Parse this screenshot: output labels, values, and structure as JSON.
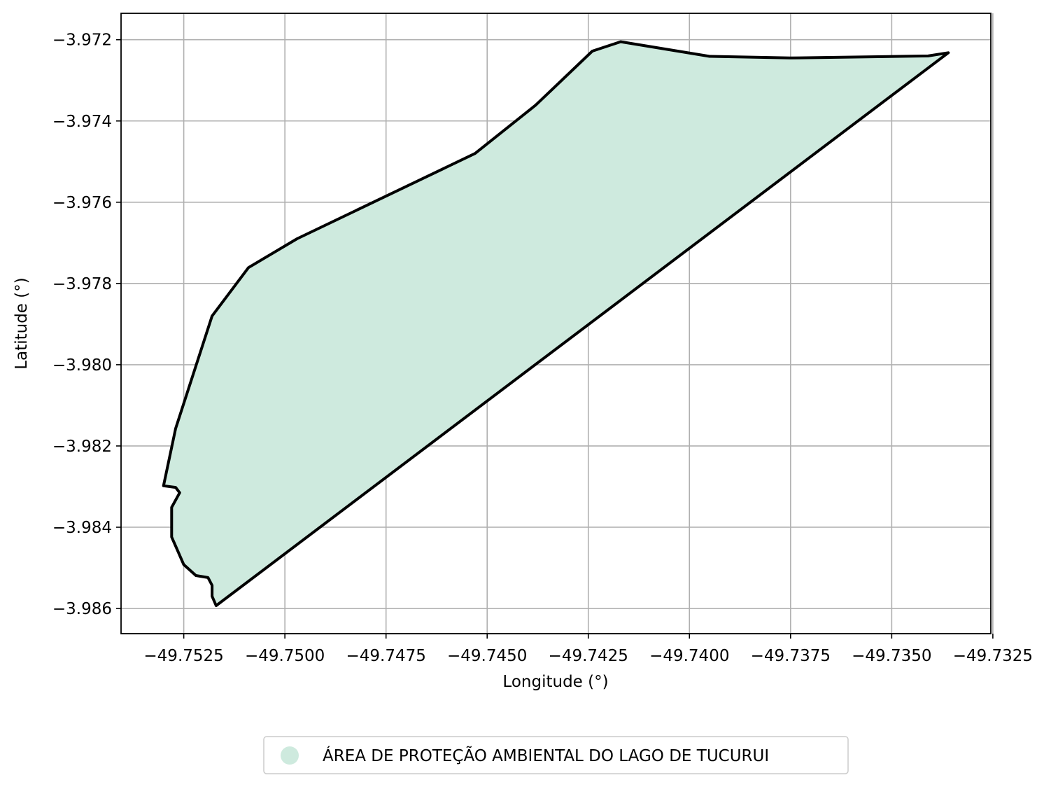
{
  "chart_data": {
    "type": "map-polygon",
    "xlabel": "Longitude (°)",
    "ylabel": "Latitude (°)",
    "xlim": [
      -49.75405,
      -49.73255
    ],
    "ylim": [
      -3.98662,
      -3.97135
    ],
    "xticks": [
      -49.7525,
      -49.75,
      -49.7475,
      -49.745,
      -49.7425,
      -49.74,
      -49.7375,
      -49.735,
      -49.7325
    ],
    "xtick_labels": [
      "−49.7525",
      "−49.7500",
      "−49.7475",
      "−49.7450",
      "−49.7425",
      "−49.7400",
      "−49.7375",
      "−49.7350",
      "−49.7325"
    ],
    "yticks": [
      -3.972,
      -3.974,
      -3.976,
      -3.978,
      -3.98,
      -3.982,
      -3.984,
      -3.986
    ],
    "ytick_labels": [
      "−3.972",
      "−3.974",
      "−3.976",
      "−3.978",
      "−3.980",
      "−3.982",
      "−3.984",
      "−3.986"
    ],
    "grid": true,
    "legend_position": "bottom-center, below plot",
    "series": [
      {
        "name": "ÁREA DE PROTEÇÃO AMBIENTAL DO LAGO DE TUCURUI",
        "fill_color": "#ceeade",
        "edge_color": "#000000",
        "polygon": [
          [
            -49.7517,
            -3.98593
          ],
          [
            -49.7336,
            -3.97232
          ],
          [
            -49.7341,
            -3.9724
          ],
          [
            -49.7375,
            -3.97245
          ],
          [
            -49.7395,
            -3.97241
          ],
          [
            -49.7417,
            -3.97205
          ],
          [
            -49.7424,
            -3.97228
          ],
          [
            -49.7438,
            -3.97361
          ],
          [
            -49.7453,
            -3.9748
          ],
          [
            -49.7497,
            -3.9769
          ],
          [
            -49.7509,
            -3.97761
          ],
          [
            -49.7518,
            -3.9788
          ],
          [
            -49.7527,
            -3.98157
          ],
          [
            -49.753,
            -3.98298
          ],
          [
            -49.7527,
            -3.98302
          ],
          [
            -49.7526,
            -3.98315
          ],
          [
            -49.7528,
            -3.98351
          ],
          [
            -49.7528,
            -3.98424
          ],
          [
            -49.7525,
            -3.98492
          ],
          [
            -49.7522,
            -3.98519
          ],
          [
            -49.7519,
            -3.98524
          ],
          [
            -49.7518,
            -3.98543
          ],
          [
            -49.7518,
            -3.9857
          ]
        ]
      }
    ]
  }
}
